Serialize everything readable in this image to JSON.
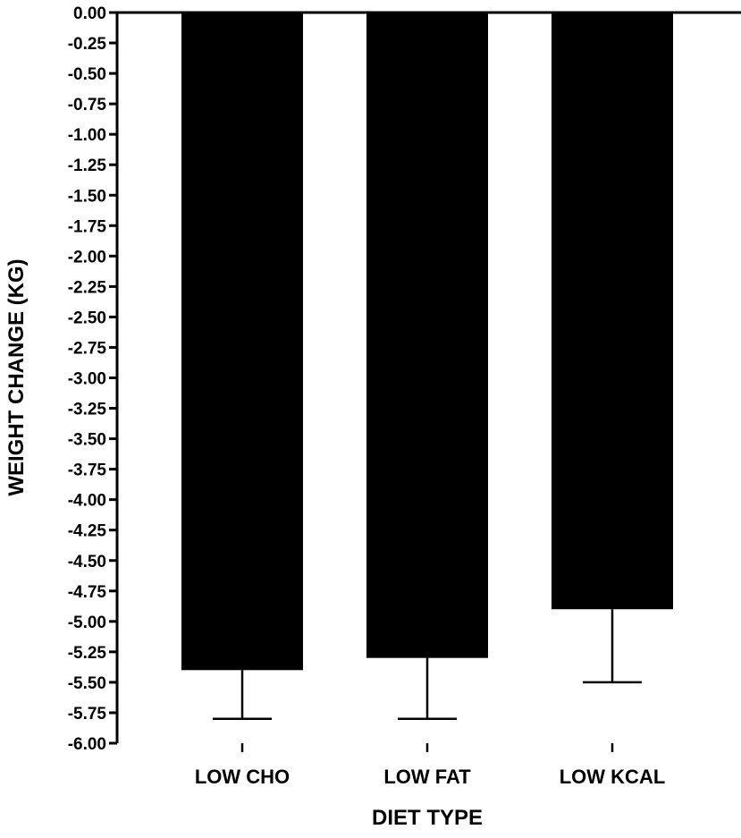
{
  "chart_data": {
    "type": "bar",
    "title": "",
    "xlabel": "DIET TYPE",
    "ylabel": "WEIGHT CHANGE (KG)",
    "ylim": [
      -6.0,
      0.0
    ],
    "yticks": [
      "0.00",
      "-0.25",
      "-0.50",
      "-0.75",
      "-1.00",
      "-1.25",
      "-1.50",
      "-1.75",
      "-2.00",
      "-2.25",
      "-2.50",
      "-2.75",
      "-3.00",
      "-3.25",
      "-3.50",
      "-3.75",
      "-4.00",
      "-4.25",
      "-4.50",
      "-4.75",
      "-5.00",
      "-5.25",
      "-5.50",
      "-5.75",
      "-6.00"
    ],
    "categories": [
      "LOW CHO",
      "LOW FAT",
      "LOW KCAL"
    ],
    "values": [
      -5.4,
      -5.3,
      -4.9
    ],
    "error_lower": [
      -5.8,
      -5.8,
      -5.5
    ],
    "grid": false,
    "bar_color": "#000000"
  }
}
